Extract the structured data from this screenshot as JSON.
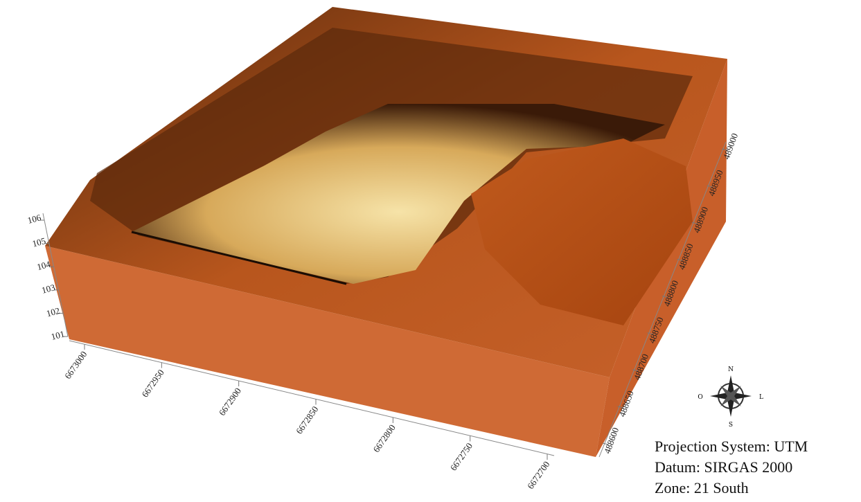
{
  "axes": {
    "elevation": {
      "ticks": [
        101,
        102,
        103,
        104,
        105,
        106
      ]
    },
    "northing": {
      "ticks": [
        6673000,
        6672950,
        6672900,
        6672850,
        6672800,
        6672750,
        6672700
      ]
    },
    "easting": {
      "ticks": [
        488600,
        488650,
        488700,
        488750,
        488800,
        488850,
        488900,
        488950,
        489000
      ]
    }
  },
  "compass": {
    "north": "N",
    "south": "S",
    "west": "O",
    "east": "L"
  },
  "legend": {
    "lines": [
      "Projection System: UTM",
      "Datum: SIRGAS 2000",
      "Zone: 21 South"
    ]
  }
}
